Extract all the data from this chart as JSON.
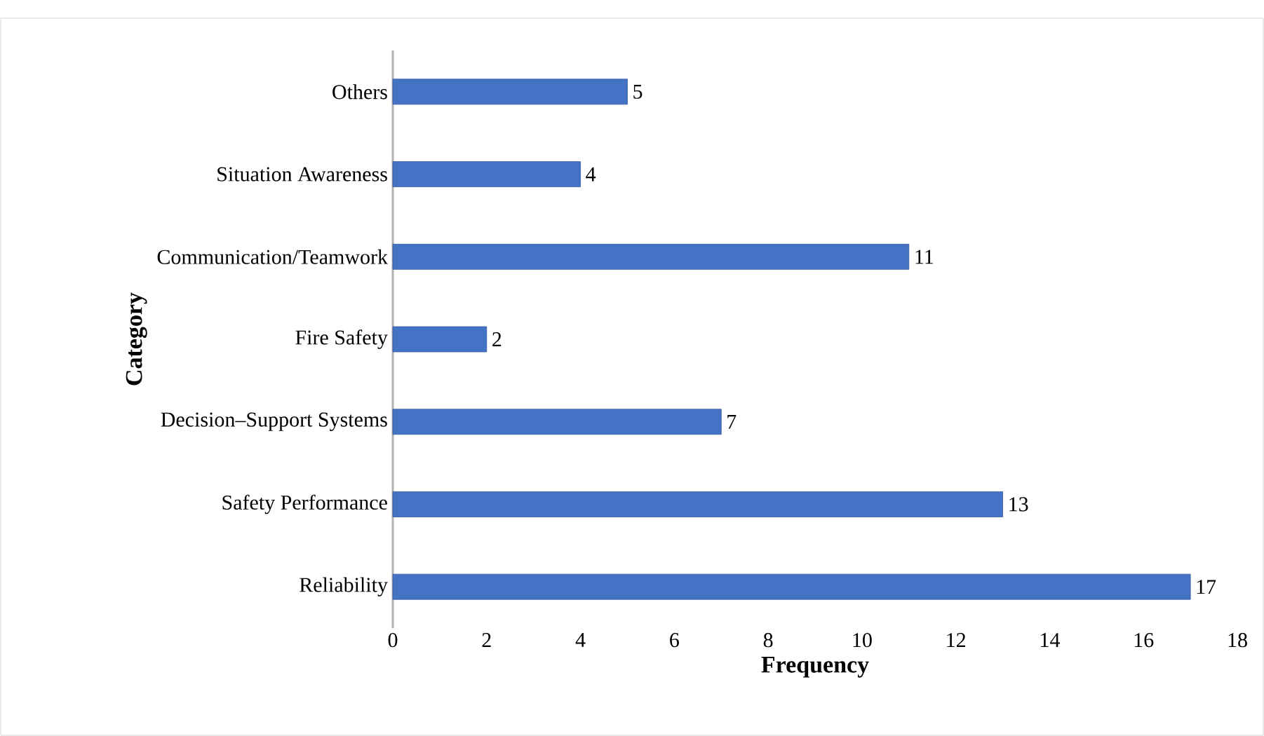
{
  "chart_data": {
    "type": "bar",
    "orientation": "horizontal",
    "xlabel": "Frequency",
    "ylabel": "Category",
    "categories": [
      "Others",
      "Situation Awareness",
      "Communication/Teamwork",
      "Fire Safety",
      "Decision–Support Systems",
      "Safety Performance",
      "Reliability"
    ],
    "values": [
      5,
      4,
      11,
      2,
      7,
      13,
      17
    ],
    "color": "#4472c4",
    "xlim": [
      0,
      18
    ],
    "xticks": [
      0,
      2,
      4,
      6,
      8,
      10,
      12,
      14,
      16,
      18
    ],
    "data_labels": true,
    "grid": false
  }
}
